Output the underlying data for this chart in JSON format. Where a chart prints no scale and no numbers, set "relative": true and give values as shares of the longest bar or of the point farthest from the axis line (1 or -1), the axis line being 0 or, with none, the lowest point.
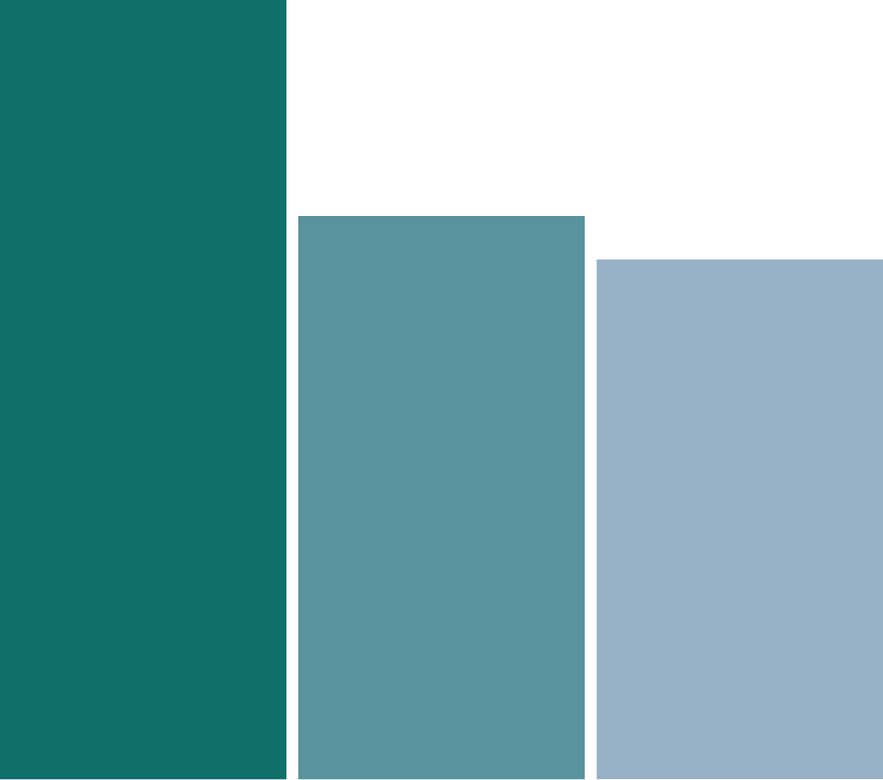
{
  "chart_data": {
    "type": "bar",
    "relative": true,
    "categories": [
      null,
      null,
      null
    ],
    "values": [
      1,
      0.723,
      0.667
    ],
    "colors": [
      "#116f6a",
      "#5a939b",
      "#97b0c5"
    ]
  }
}
